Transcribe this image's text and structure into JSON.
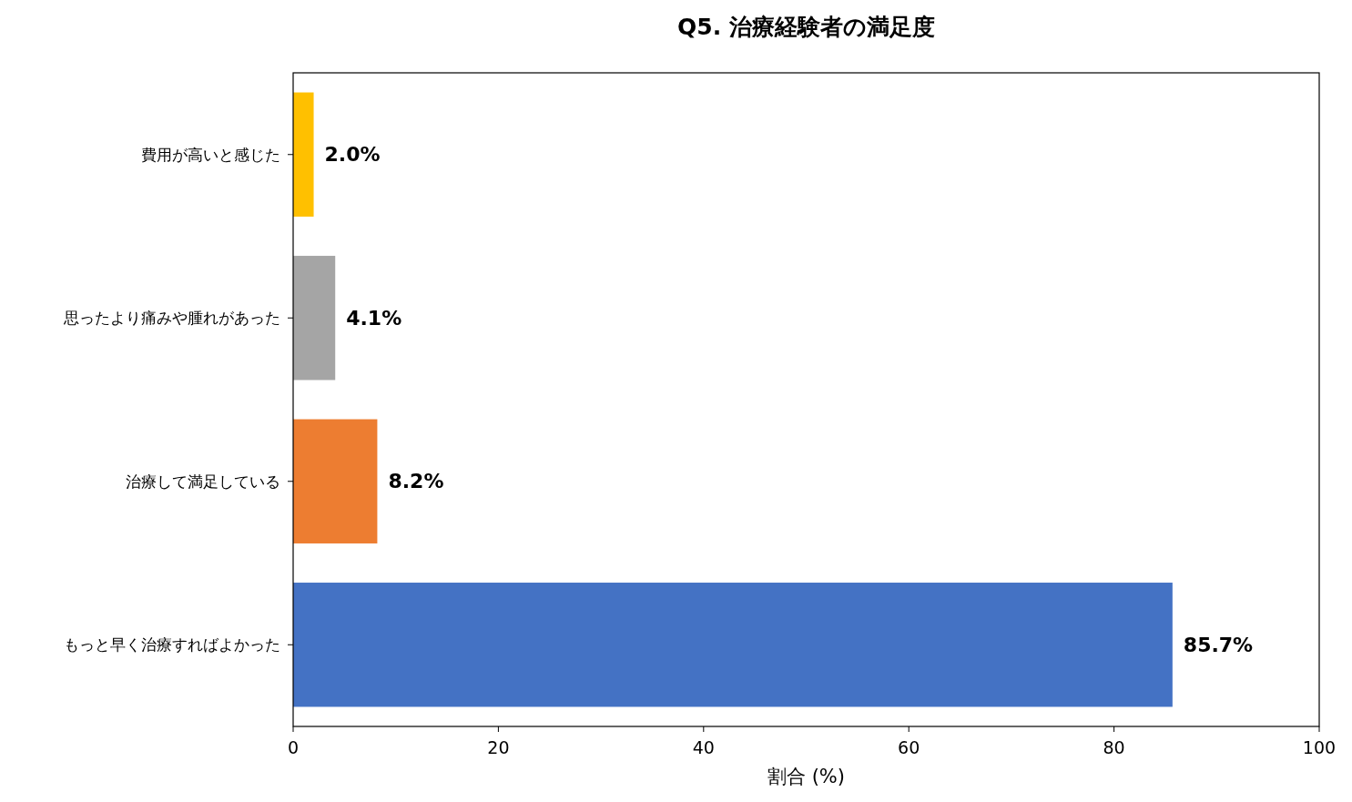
{
  "chart_data": {
    "type": "bar",
    "orientation": "horizontal",
    "title": "Q5. 治療経験者の満足度",
    "xlabel": "割合 (%)",
    "categories": [
      "費用が高いと感じた",
      "思ったより痛みや腫れがあった",
      "治療して満足している",
      "もっと早く治療すればよかった"
    ],
    "values": [
      2.0,
      4.1,
      8.2,
      85.7
    ],
    "colors": [
      "#ffc000",
      "#a5a5a5",
      "#ed7d31",
      "#4472c4"
    ],
    "value_labels": [
      "2.0%",
      "4.1%",
      "8.2%",
      "85.7%"
    ],
    "xlim": [
      0,
      100
    ],
    "xticks": [
      0,
      20,
      40,
      60,
      80,
      100
    ]
  }
}
